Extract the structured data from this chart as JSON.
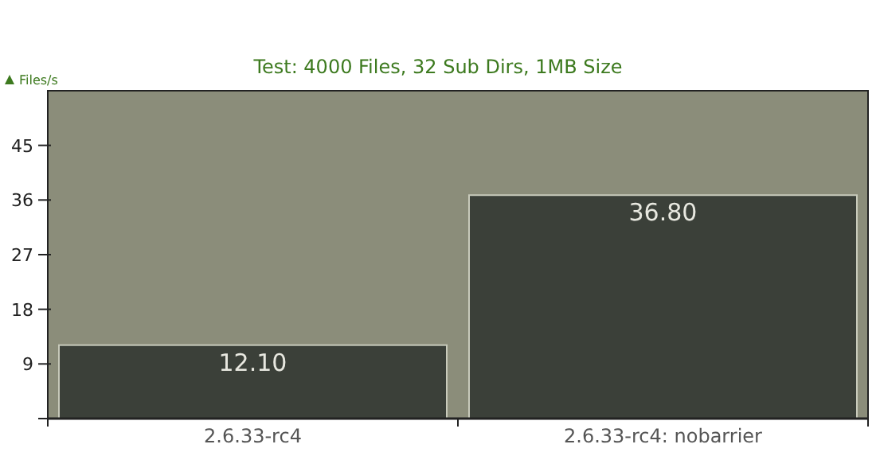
{
  "chart_data": {
    "type": "bar",
    "subtitle": "Test: 4000 Files, 32 Sub Dirs, 1MB Size",
    "ylabel": "Files/s",
    "categories": [
      "2.6.33-rc4",
      "2.6.33-rc4: nobarrier"
    ],
    "values": [
      12.1,
      36.8
    ],
    "value_labels": [
      "12.10",
      "36.80"
    ],
    "color": "#3b4039",
    "ylim": [
      0,
      54
    ],
    "yticks": [
      {
        "value": 0,
        "label": null
      },
      9,
      18,
      27,
      36,
      45
    ],
    "grid": false
  }
}
